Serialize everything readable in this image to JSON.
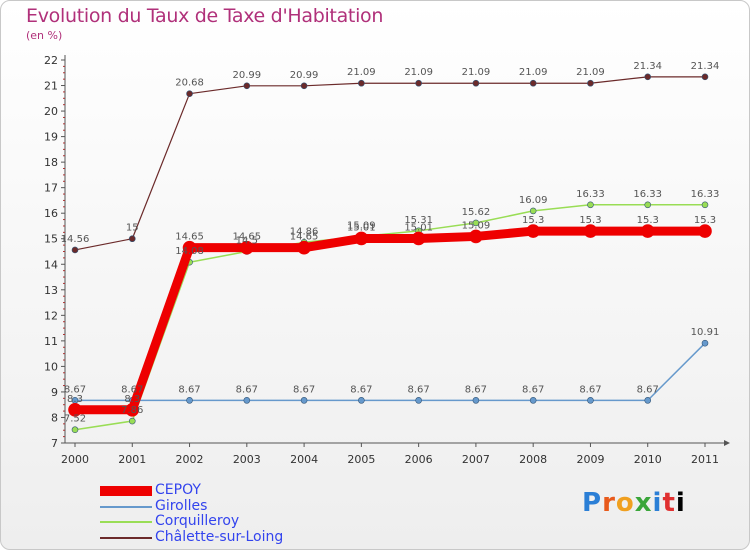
{
  "title": "Evolution du Taux de Taxe d'Habitation",
  "subtitle": "(en %)",
  "logo": "Proxiti",
  "chart_data": {
    "type": "line",
    "title": "Evolution du Taux de Taxe d'Habitation",
    "ylabel": "(en %)",
    "xlabel": "",
    "x": [
      "2000",
      "2001",
      "2002",
      "2003",
      "2004",
      "2005",
      "2006",
      "2007",
      "2008",
      "2009",
      "2010",
      "2011"
    ],
    "yticks": [
      7,
      8,
      9,
      10,
      11,
      12,
      13,
      14,
      15,
      16,
      17,
      18,
      19,
      20,
      21,
      22
    ],
    "ylim": [
      7,
      22
    ],
    "grid": false,
    "legend_position": "bottom-left",
    "series": [
      {
        "name": "CEPOY",
        "color": "#ee0000",
        "values": [
          8.3,
          8.3,
          14.65,
          14.65,
          14.65,
          15.01,
          15.01,
          15.09,
          15.3,
          15.3,
          15.3,
          15.3
        ],
        "labels": [
          "8.3",
          "8.3",
          "14.65",
          "14.65",
          "14.65",
          "15.01",
          "15.01",
          "15.09",
          "15.3",
          "15.3",
          "15.3",
          "15.3"
        ]
      },
      {
        "name": "Girolles",
        "color": "#6699cc",
        "values": [
          8.67,
          8.67,
          8.67,
          8.67,
          8.67,
          8.67,
          8.67,
          8.67,
          8.67,
          8.67,
          8.67,
          10.91
        ],
        "labels": [
          "8.67",
          "8.67",
          "8.67",
          "8.67",
          "8.67",
          "8.67",
          "8.67",
          "8.67",
          "8.67",
          "8.67",
          "8.67",
          "10.91"
        ]
      },
      {
        "name": "Corquilleroy",
        "color": "#99dd55",
        "values": [
          7.52,
          7.86,
          14.08,
          14.5,
          14.86,
          15.09,
          15.31,
          15.62,
          16.09,
          16.33,
          16.33,
          16.33
        ],
        "labels": [
          "7.52",
          "7.86",
          "14.08",
          "14.5",
          "14.86",
          "15.09",
          "15.31",
          "15.62",
          "16.09",
          "16.33",
          "16.33",
          "16.33"
        ]
      },
      {
        "name": "Châlette-sur-Loing",
        "color": "#6b2a2a",
        "values": [
          14.56,
          15,
          20.68,
          20.99,
          20.99,
          21.09,
          21.09,
          21.09,
          21.09,
          21.09,
          21.34,
          21.34
        ],
        "labels": [
          "14.56",
          "15",
          "20.68",
          "20.99",
          "20.99",
          "21.09",
          "21.09",
          "21.09",
          "21.09",
          "21.09",
          "21.34",
          "21.34"
        ]
      }
    ]
  }
}
